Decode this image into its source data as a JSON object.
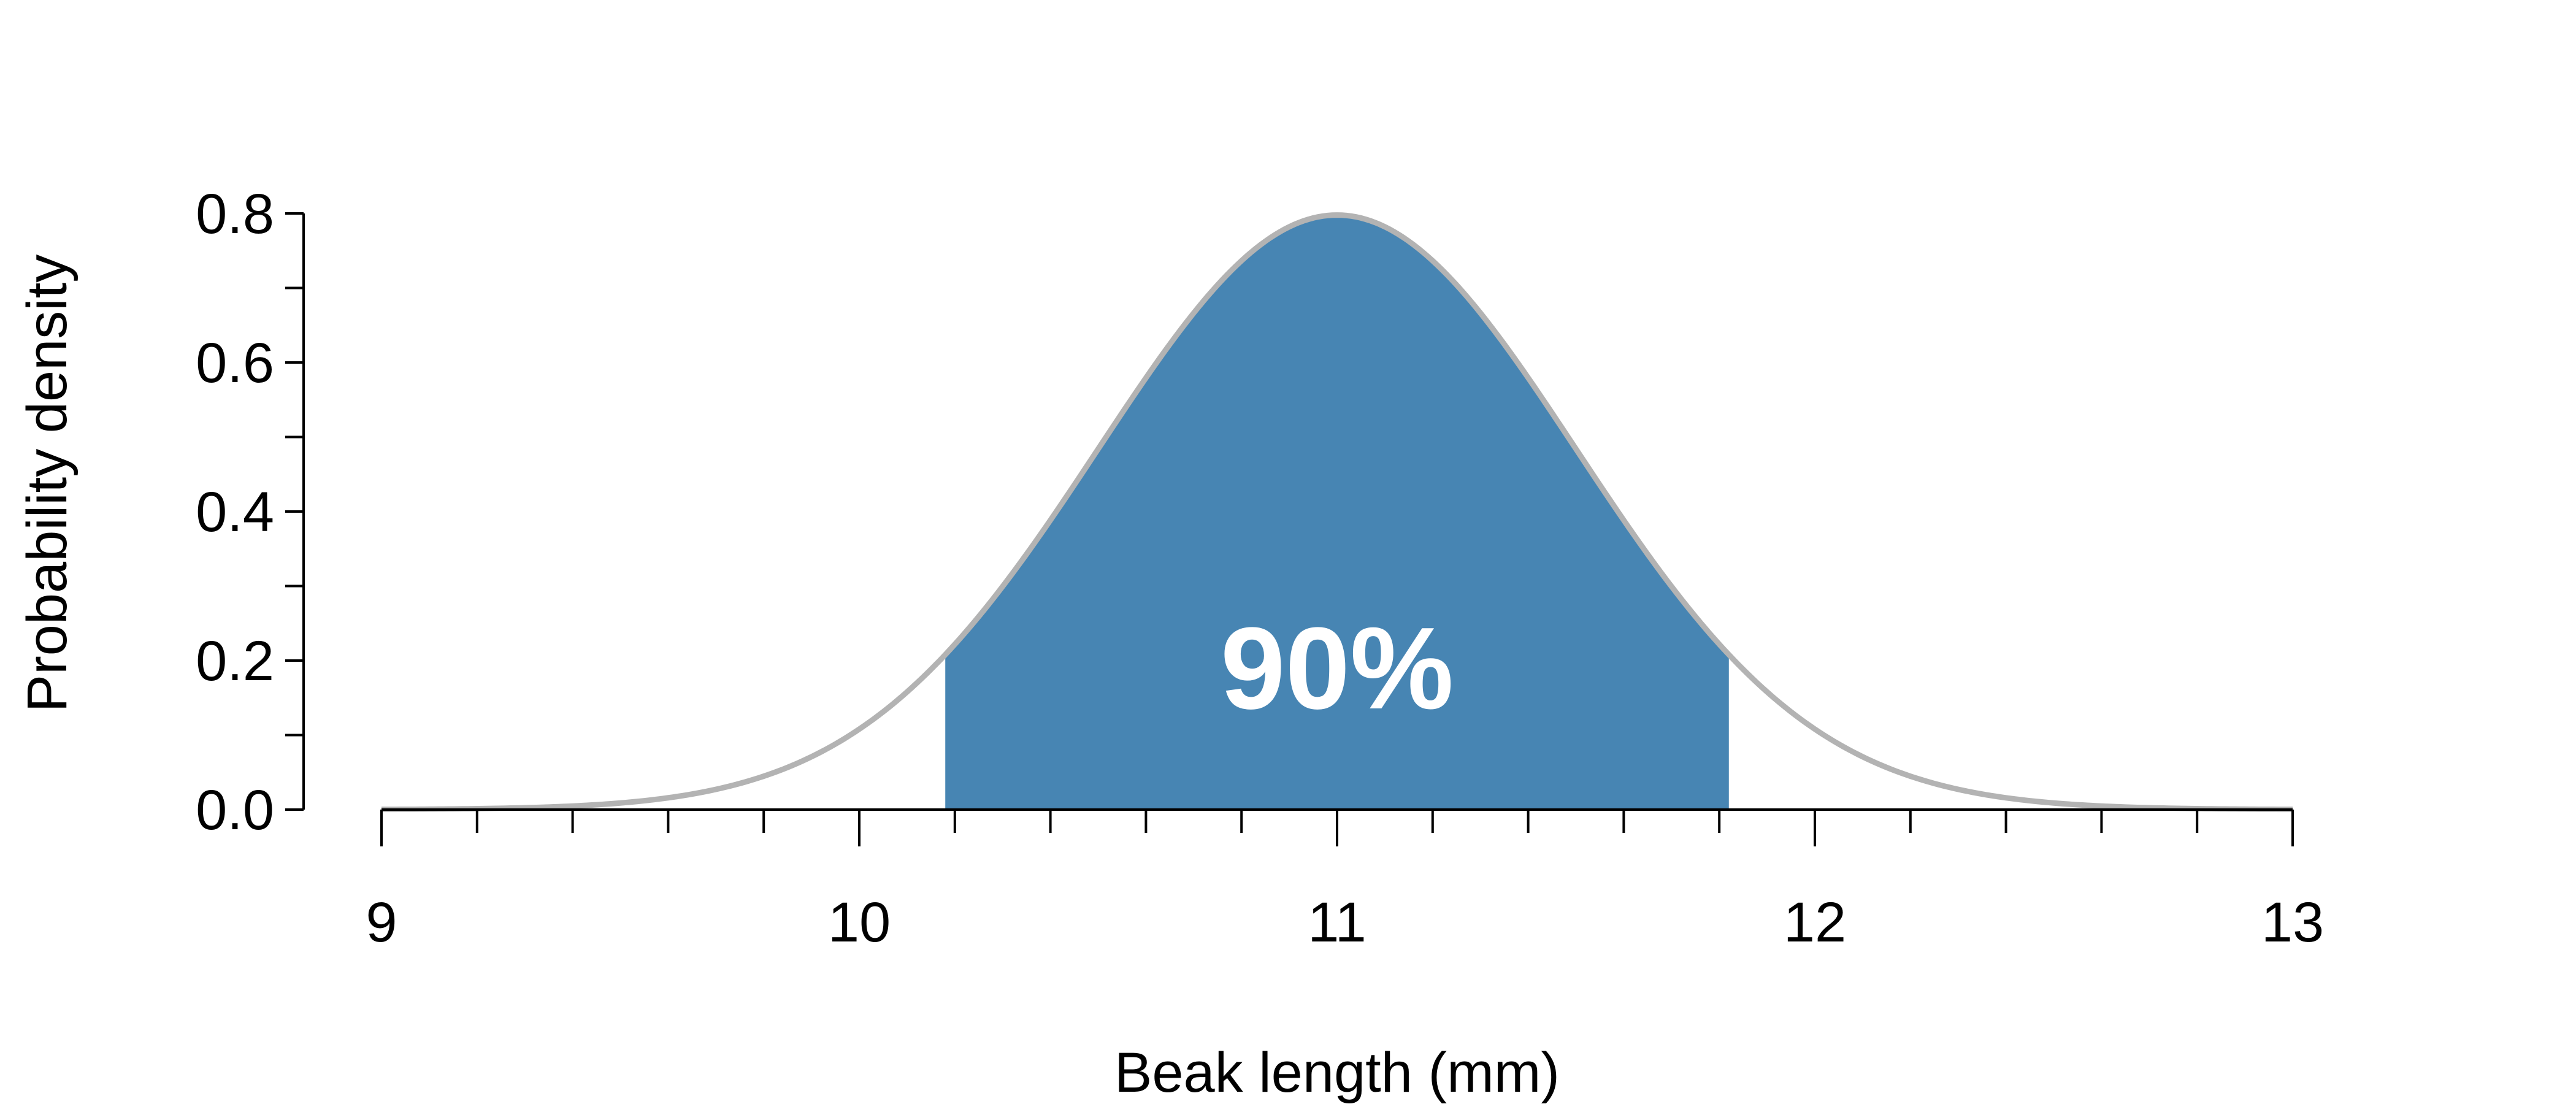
{
  "chart_data": {
    "type": "area",
    "title": "",
    "xlabel": "Beak length (mm)",
    "ylabel": "Probability density",
    "distribution": {
      "family": "normal",
      "mean": 11,
      "sd": 0.5
    },
    "xlim": [
      9,
      13
    ],
    "ylim": [
      0,
      0.8
    ],
    "x_major_ticks": [
      9,
      10,
      11,
      12,
      13
    ],
    "x_tick_labels": [
      "9",
      "10",
      "11",
      "12",
      "13"
    ],
    "x_minor_step": 0.2,
    "y_major_ticks": [
      0,
      0.2,
      0.4,
      0.6,
      0.8
    ],
    "y_tick_labels": [
      "0.0",
      "0.2",
      "0.4",
      "0.6",
      "0.8"
    ],
    "y_minor_step": 0.1,
    "shaded_interval": [
      10.18,
      11.82
    ],
    "annotation": "90%",
    "colors": {
      "curve": "#b3b3b3",
      "fill": "#4785b3",
      "axis": "#000000"
    },
    "grid": false
  }
}
